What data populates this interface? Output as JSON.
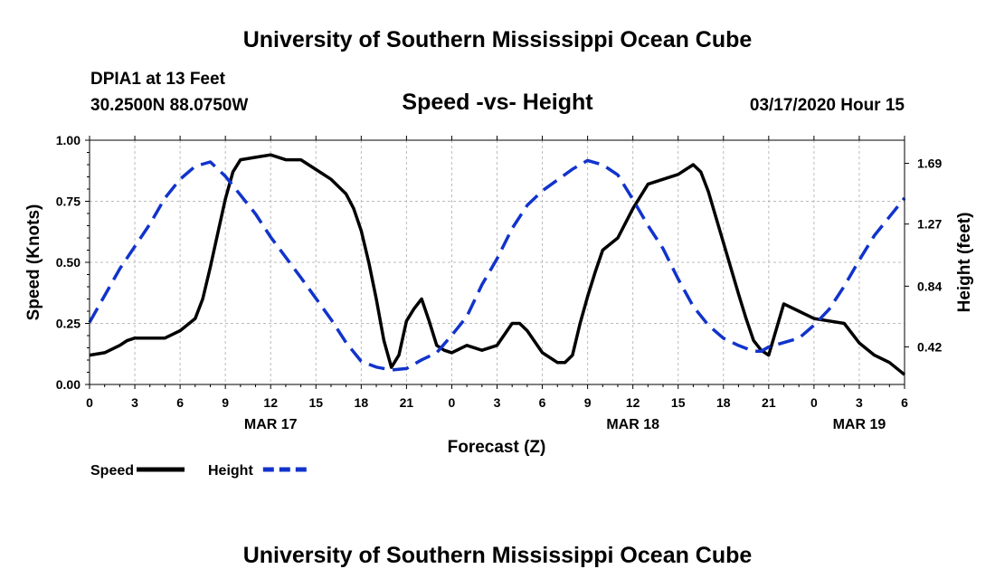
{
  "header": {
    "title": "University of Southern Mississippi Ocean Cube",
    "station": "DPIA1 at 13 Feet",
    "coordinates": "30.2500N 88.0750W",
    "date": "03/17/2020 Hour 15"
  },
  "footer": {
    "title": "University of Southern Mississippi Ocean Cube"
  },
  "chart_data": {
    "type": "line",
    "title": "Speed -vs- Height",
    "xlabel": "Forecast (Z)",
    "ylabel": "Speed (Knots)",
    "y2label": "Height (feet)",
    "x_range_hours": [
      0,
      54
    ],
    "ylim": [
      0,
      1
    ],
    "y2lim": [
      0.16,
      1.85
    ],
    "x_ticks": [
      {
        "h": 0,
        "label": "0"
      },
      {
        "h": 3,
        "label": "3"
      },
      {
        "h": 6,
        "label": "6"
      },
      {
        "h": 9,
        "label": "9"
      },
      {
        "h": 12,
        "label": "12"
      },
      {
        "h": 15,
        "label": "15"
      },
      {
        "h": 18,
        "label": "18"
      },
      {
        "h": 21,
        "label": "21"
      },
      {
        "h": 24,
        "label": "0"
      },
      {
        "h": 27,
        "label": "3"
      },
      {
        "h": 30,
        "label": "6"
      },
      {
        "h": 33,
        "label": "9"
      },
      {
        "h": 36,
        "label": "12"
      },
      {
        "h": 39,
        "label": "15"
      },
      {
        "h": 42,
        "label": "18"
      },
      {
        "h": 45,
        "label": "21"
      },
      {
        "h": 48,
        "label": "0"
      },
      {
        "h": 51,
        "label": "3"
      },
      {
        "h": 54,
        "label": "6"
      }
    ],
    "date_labels": [
      {
        "h": 12,
        "label": "MAR 17"
      },
      {
        "h": 36,
        "label": "MAR 18"
      },
      {
        "h": 51,
        "label": "MAR 19"
      }
    ],
    "y_ticks": [
      {
        "v": 0,
        "label": "0.00"
      },
      {
        "v": 0.25,
        "label": "0.25"
      },
      {
        "v": 0.5,
        "label": "0.50"
      },
      {
        "v": 0.75,
        "label": "0.75"
      },
      {
        "v": 1,
        "label": "1.00"
      }
    ],
    "y2_ticks": [
      {
        "v": 0.42,
        "label": "0.42"
      },
      {
        "v": 0.84,
        "label": "0.84"
      },
      {
        "v": 1.27,
        "label": "1.27"
      },
      {
        "v": 1.69,
        "label": "1.69"
      }
    ],
    "series": [
      {
        "name": "Speed",
        "axis": "left",
        "color": "#000000",
        "dash": "solid",
        "points": [
          [
            0,
            0.12
          ],
          [
            1,
            0.13
          ],
          [
            2,
            0.16
          ],
          [
            2.5,
            0.18
          ],
          [
            3,
            0.19
          ],
          [
            4,
            0.19
          ],
          [
            5,
            0.19
          ],
          [
            6,
            0.22
          ],
          [
            7,
            0.27
          ],
          [
            7.5,
            0.35
          ],
          [
            8,
            0.48
          ],
          [
            8.5,
            0.62
          ],
          [
            9,
            0.76
          ],
          [
            9.5,
            0.87
          ],
          [
            10,
            0.92
          ],
          [
            11,
            0.93
          ],
          [
            12,
            0.94
          ],
          [
            13,
            0.92
          ],
          [
            14,
            0.92
          ],
          [
            15,
            0.88
          ],
          [
            16,
            0.84
          ],
          [
            17,
            0.78
          ],
          [
            17.5,
            0.72
          ],
          [
            18,
            0.63
          ],
          [
            18.5,
            0.5
          ],
          [
            19,
            0.35
          ],
          [
            19.5,
            0.18
          ],
          [
            20,
            0.07
          ],
          [
            20.5,
            0.12
          ],
          [
            21,
            0.26
          ],
          [
            21.5,
            0.31
          ],
          [
            22,
            0.35
          ],
          [
            22.5,
            0.26
          ],
          [
            23,
            0.16
          ],
          [
            23.5,
            0.14
          ],
          [
            24,
            0.13
          ],
          [
            25,
            0.16
          ],
          [
            26,
            0.14
          ],
          [
            27,
            0.16
          ],
          [
            28,
            0.25
          ],
          [
            28.5,
            0.25
          ],
          [
            29,
            0.22
          ],
          [
            30,
            0.13
          ],
          [
            31,
            0.09
          ],
          [
            31.5,
            0.09
          ],
          [
            32,
            0.12
          ],
          [
            32.5,
            0.25
          ],
          [
            33,
            0.36
          ],
          [
            33.5,
            0.46
          ],
          [
            34,
            0.55
          ],
          [
            35,
            0.6
          ],
          [
            36,
            0.72
          ],
          [
            37,
            0.82
          ],
          [
            38,
            0.84
          ],
          [
            39,
            0.86
          ],
          [
            39.5,
            0.88
          ],
          [
            40,
            0.9
          ],
          [
            40.5,
            0.87
          ],
          [
            41,
            0.79
          ],
          [
            42,
            0.58
          ],
          [
            43,
            0.37
          ],
          [
            43.5,
            0.27
          ],
          [
            44,
            0.18
          ],
          [
            44.5,
            0.14
          ],
          [
            45,
            0.12
          ],
          [
            46,
            0.33
          ],
          [
            47,
            0.3
          ],
          [
            48,
            0.27
          ],
          [
            49,
            0.26
          ],
          [
            50,
            0.25
          ],
          [
            51,
            0.17
          ],
          [
            52,
            0.12
          ],
          [
            53,
            0.09
          ],
          [
            54,
            0.04
          ]
        ]
      },
      {
        "name": "Height",
        "axis": "right",
        "color": "#1133cc",
        "dash": "dashed",
        "points": [
          [
            0,
            0.59
          ],
          [
            2,
            0.96
          ],
          [
            4,
            1.27
          ],
          [
            5,
            1.45
          ],
          [
            6,
            1.58
          ],
          [
            7,
            1.67
          ],
          [
            8,
            1.7
          ],
          [
            9,
            1.6
          ],
          [
            10,
            1.47
          ],
          [
            11,
            1.34
          ],
          [
            12,
            1.18
          ],
          [
            14,
            0.9
          ],
          [
            16,
            0.61
          ],
          [
            17,
            0.45
          ],
          [
            18,
            0.32
          ],
          [
            19,
            0.28
          ],
          [
            20,
            0.26
          ],
          [
            21,
            0.27
          ],
          [
            22,
            0.33
          ],
          [
            23,
            0.38
          ],
          [
            24,
            0.5
          ],
          [
            25,
            0.63
          ],
          [
            26,
            0.85
          ],
          [
            27,
            1.03
          ],
          [
            28,
            1.24
          ],
          [
            29,
            1.4
          ],
          [
            30,
            1.5
          ],
          [
            32,
            1.65
          ],
          [
            33,
            1.71
          ],
          [
            34,
            1.68
          ],
          [
            35,
            1.61
          ],
          [
            36,
            1.44
          ],
          [
            37,
            1.26
          ],
          [
            38,
            1.1
          ],
          [
            39,
            0.89
          ],
          [
            40,
            0.7
          ],
          [
            41,
            0.57
          ],
          [
            42,
            0.48
          ],
          [
            43,
            0.43
          ],
          [
            44,
            0.39
          ],
          [
            44.5,
            0.39
          ],
          [
            45,
            0.42
          ],
          [
            46,
            0.45
          ],
          [
            47,
            0.48
          ],
          [
            48,
            0.57
          ],
          [
            49,
            0.68
          ],
          [
            50,
            0.84
          ],
          [
            51,
            1.02
          ],
          [
            52,
            1.19
          ],
          [
            53,
            1.32
          ],
          [
            54,
            1.45
          ]
        ]
      }
    ],
    "legend": {
      "placement": "bottom-left",
      "items": [
        {
          "label": "Speed",
          "color": "#000000",
          "dash": "solid"
        },
        {
          "label": "Height",
          "color": "#1133cc",
          "dash": "dashed"
        }
      ]
    },
    "grid": true
  }
}
